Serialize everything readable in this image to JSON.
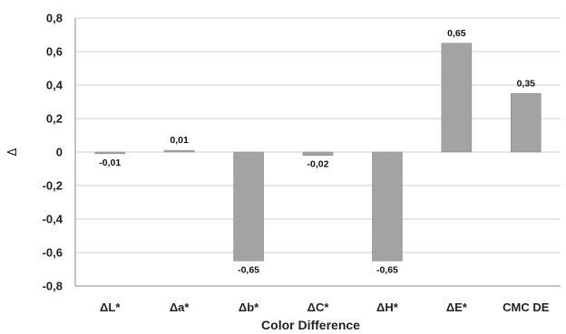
{
  "chart_data": {
    "type": "bar",
    "categories": [
      "ΔL*",
      "Δa*",
      "Δb*",
      "ΔC*",
      "ΔH*",
      "ΔE*",
      "CMC DE"
    ],
    "values": [
      -0.01,
      0.01,
      -0.65,
      -0.02,
      -0.65,
      0.65,
      0.35
    ],
    "data_labels": [
      "-0,01",
      "0,01",
      "-0,65",
      "-0,02",
      "-0,65",
      "0,65",
      "0,35"
    ],
    "xlabel": "Color Difference",
    "ylabel": "Δ",
    "ylim": [
      -0.8,
      0.8
    ],
    "yticks": [
      0.8,
      0.6,
      0.4,
      0.2,
      0,
      -0.2,
      -0.4,
      -0.6,
      -0.8
    ],
    "ytick_labels": [
      "0,8",
      "0,6",
      "0,4",
      "0,2",
      "0",
      "-0,2",
      "-0,4",
      "-0,6",
      "-0,8"
    ],
    "grid": true,
    "bar_color": "#a3a3a3"
  }
}
